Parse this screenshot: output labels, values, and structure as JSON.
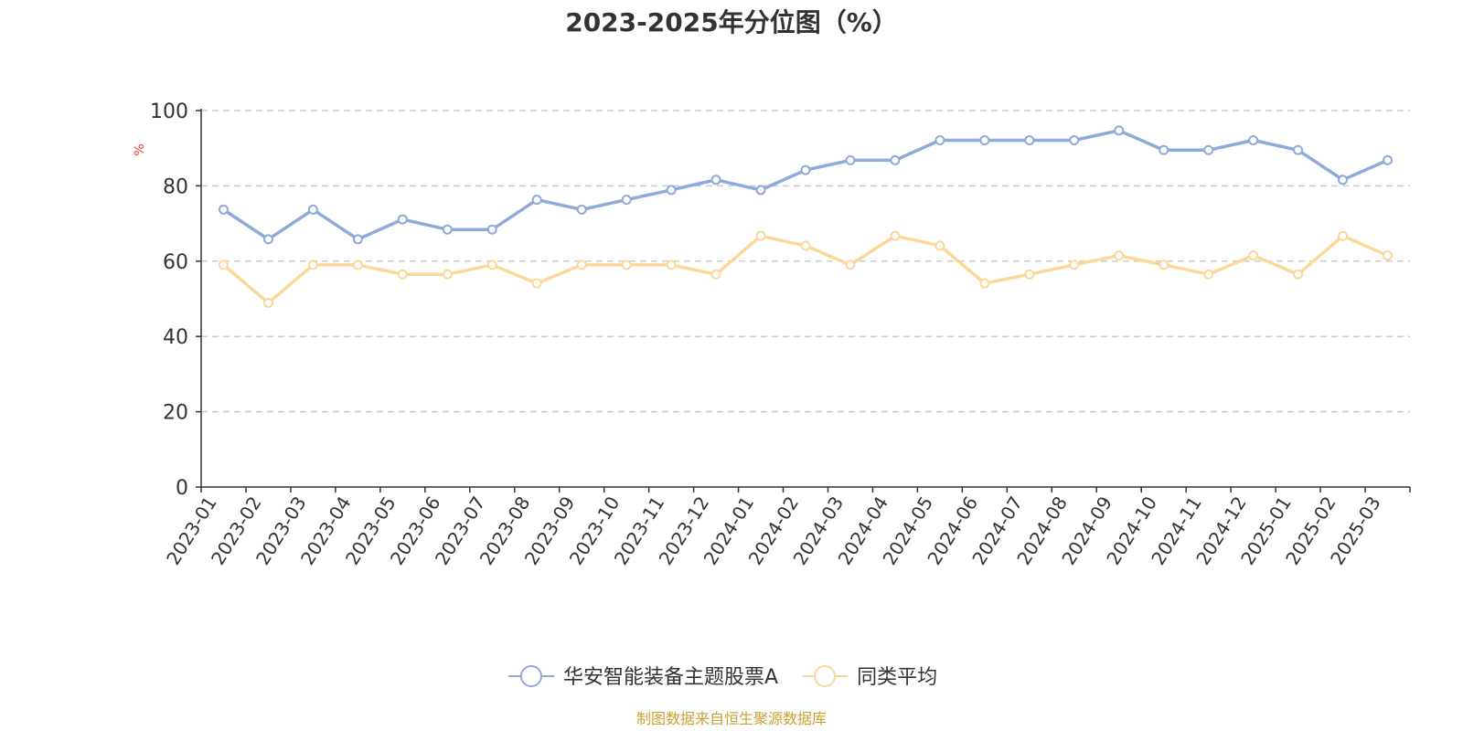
{
  "chart_data": {
    "type": "line",
    "title": "2023-2025年分位图（%）",
    "ylabel": "%",
    "ylim": [
      0,
      100
    ],
    "yticks": [
      0,
      20,
      40,
      60,
      80,
      100
    ],
    "grid": true,
    "legend_position": "bottom",
    "categories": [
      "2023-01",
      "2023-02",
      "2023-03",
      "2023-04",
      "2023-05",
      "2023-06",
      "2023-07",
      "2023-08",
      "2023-09",
      "2023-10",
      "2023-11",
      "2023-12",
      "2024-01",
      "2024-02",
      "2024-03",
      "2024-04",
      "2024-05",
      "2024-06",
      "2024-07",
      "2024-08",
      "2024-09",
      "2024-10",
      "2024-11",
      "2024-12",
      "2025-01",
      "2025-02",
      "2025-03"
    ],
    "series": [
      {
        "name": "华安智能装备主题股票A",
        "color": "#8eaad9",
        "values": [
          73.7,
          65.8,
          73.7,
          65.8,
          71.1,
          68.4,
          68.4,
          76.3,
          73.7,
          76.3,
          78.9,
          81.6,
          78.9,
          84.2,
          86.8,
          86.8,
          92.1,
          92.1,
          92.1,
          92.1,
          94.7,
          89.5,
          89.5,
          92.1,
          89.5,
          81.6,
          86.8
        ]
      },
      {
        "name": "同类平均",
        "color": "#fbd89a",
        "values": [
          59.0,
          48.9,
          59.0,
          59.0,
          56.5,
          56.5,
          59.0,
          54.1,
          59.0,
          59.0,
          59.0,
          56.5,
          66.7,
          64.1,
          59.0,
          66.7,
          64.1,
          54.1,
          56.5,
          59.0,
          61.5,
          59.0,
          56.5,
          61.5,
          56.5,
          66.7,
          61.5
        ]
      }
    ]
  },
  "source": "制图数据来自恒生聚源数据库",
  "colors": {
    "unit_label": "#e03c31",
    "source_text": "#c8a233",
    "grid": "#cccccc",
    "axis": "#333333"
  }
}
